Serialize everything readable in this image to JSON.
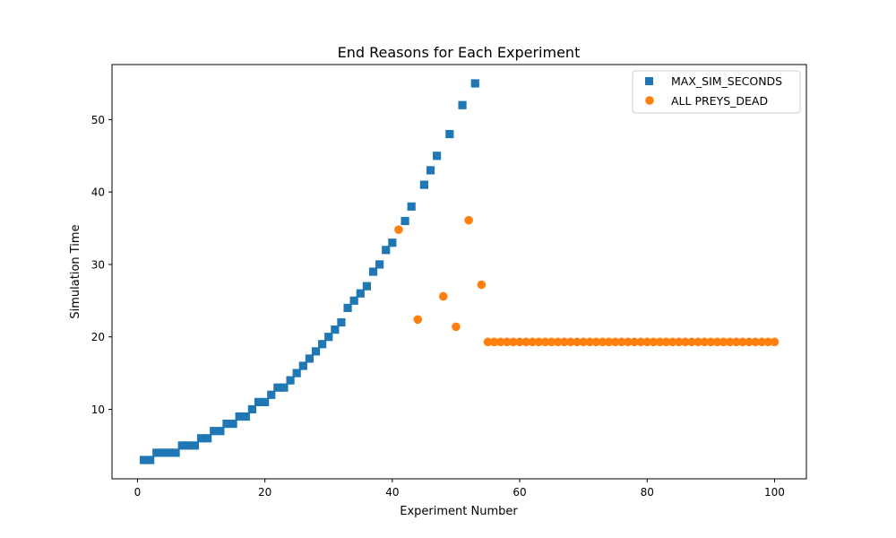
{
  "chart_data": {
    "type": "scatter",
    "title": "End Reasons for Each Experiment",
    "xlabel": "Experiment Number",
    "ylabel": "Simulation Time",
    "xlim": [
      -4,
      105
    ],
    "ylim": [
      0.4,
      57.6
    ],
    "xticks": [
      0,
      20,
      40,
      60,
      80,
      100
    ],
    "yticks": [
      10,
      20,
      30,
      40,
      50
    ],
    "grid": false,
    "legend_position": "top-right",
    "series": [
      {
        "name": "MAX_SIM_SECONDS",
        "marker": "square",
        "color": "#1f77b4",
        "points": [
          [
            1,
            3
          ],
          [
            2,
            3
          ],
          [
            3,
            4
          ],
          [
            4,
            4
          ],
          [
            5,
            4
          ],
          [
            6,
            4
          ],
          [
            7,
            5
          ],
          [
            8,
            5
          ],
          [
            9,
            5
          ],
          [
            10,
            6
          ],
          [
            11,
            6
          ],
          [
            12,
            7
          ],
          [
            13,
            7
          ],
          [
            14,
            8
          ],
          [
            15,
            8
          ],
          [
            16,
            9
          ],
          [
            17,
            9
          ],
          [
            18,
            10
          ],
          [
            19,
            11
          ],
          [
            20,
            11
          ],
          [
            21,
            12
          ],
          [
            22,
            13
          ],
          [
            23,
            13
          ],
          [
            24,
            14
          ],
          [
            25,
            15
          ],
          [
            26,
            16
          ],
          [
            27,
            17
          ],
          [
            28,
            18
          ],
          [
            29,
            19
          ],
          [
            30,
            20
          ],
          [
            31,
            21
          ],
          [
            32,
            22
          ],
          [
            33,
            24
          ],
          [
            34,
            25
          ],
          [
            35,
            26
          ],
          [
            36,
            27
          ],
          [
            37,
            29
          ],
          [
            38,
            30
          ],
          [
            39,
            32
          ],
          [
            40,
            33
          ],
          [
            42,
            36
          ],
          [
            43,
            38
          ],
          [
            45,
            41
          ],
          [
            46,
            43
          ],
          [
            47,
            45
          ],
          [
            49,
            48
          ],
          [
            51,
            52
          ],
          [
            53,
            55
          ]
        ]
      },
      {
        "name": "ALL PREYS_DEAD",
        "marker": "circle",
        "color": "#ff7f0e",
        "points": [
          [
            41,
            34.8
          ],
          [
            44,
            22.4
          ],
          [
            48,
            25.6
          ],
          [
            50,
            21.4
          ],
          [
            52,
            36.1
          ],
          [
            54,
            27.2
          ],
          [
            55,
            19.3
          ],
          [
            56,
            19.3
          ],
          [
            57,
            19.3
          ],
          [
            58,
            19.3
          ],
          [
            59,
            19.3
          ],
          [
            60,
            19.3
          ],
          [
            61,
            19.3
          ],
          [
            62,
            19.3
          ],
          [
            63,
            19.3
          ],
          [
            64,
            19.3
          ],
          [
            65,
            19.3
          ],
          [
            66,
            19.3
          ],
          [
            67,
            19.3
          ],
          [
            68,
            19.3
          ],
          [
            69,
            19.3
          ],
          [
            70,
            19.3
          ],
          [
            71,
            19.3
          ],
          [
            72,
            19.3
          ],
          [
            73,
            19.3
          ],
          [
            74,
            19.3
          ],
          [
            75,
            19.3
          ],
          [
            76,
            19.3
          ],
          [
            77,
            19.3
          ],
          [
            78,
            19.3
          ],
          [
            79,
            19.3
          ],
          [
            80,
            19.3
          ],
          [
            81,
            19.3
          ],
          [
            82,
            19.3
          ],
          [
            83,
            19.3
          ],
          [
            84,
            19.3
          ],
          [
            85,
            19.3
          ],
          [
            86,
            19.3
          ],
          [
            87,
            19.3
          ],
          [
            88,
            19.3
          ],
          [
            89,
            19.3
          ],
          [
            90,
            19.3
          ],
          [
            91,
            19.3
          ],
          [
            92,
            19.3
          ],
          [
            93,
            19.3
          ],
          [
            94,
            19.3
          ],
          [
            95,
            19.3
          ],
          [
            96,
            19.3
          ],
          [
            97,
            19.3
          ],
          [
            98,
            19.3
          ],
          [
            99,
            19.3
          ],
          [
            100,
            19.3
          ]
        ]
      }
    ]
  }
}
